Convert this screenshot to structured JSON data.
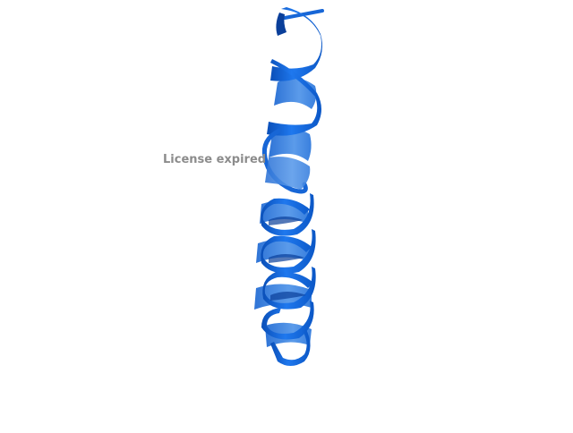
{
  "viewer": {
    "watermark_text": "License expired"
  },
  "structure": {
    "representation": "cartoon-helix",
    "colors": {
      "helix_front": "#1a6fe6",
      "helix_light": "#3d8ef0",
      "helix_dark": "#0a3f9a",
      "helix_back": "#5a9be8",
      "background": "#ffffff",
      "watermark": "#8c8c8c"
    }
  }
}
